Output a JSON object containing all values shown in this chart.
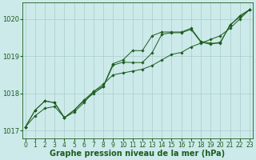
{
  "title": "Graphe pression niveau de la mer (hPa)",
  "bg_color": "#cceaea",
  "grid_color": "#aacccc",
  "line_color": "#1e5c1e",
  "hours": [
    0,
    1,
    2,
    3,
    4,
    5,
    6,
    7,
    8,
    9,
    10,
    11,
    12,
    13,
    14,
    15,
    16,
    17,
    18,
    19,
    20,
    21,
    22,
    23
  ],
  "s1": [
    1017.1,
    1017.55,
    1017.8,
    1017.75,
    1017.35,
    1017.5,
    1017.75,
    1018.05,
    1018.2,
    1018.8,
    1018.9,
    1019.15,
    1019.15,
    1019.55,
    1019.65,
    1019.65,
    1019.65,
    1019.75,
    1019.4,
    1019.35,
    1019.35,
    1019.85,
    1020.05,
    1020.25
  ],
  "s2": [
    1017.1,
    1017.55,
    1017.8,
    1017.75,
    1017.35,
    1017.55,
    1017.8,
    1018.0,
    1018.18,
    1018.76,
    1018.84,
    1018.83,
    1018.83,
    1019.09,
    1019.59,
    1019.63,
    1019.63,
    1019.72,
    1019.38,
    1019.32,
    1019.38,
    1019.82,
    1020.09,
    1020.25
  ],
  "s3": [
    1017.1,
    1017.4,
    1017.6,
    1017.65,
    1017.35,
    1017.55,
    1017.82,
    1018.05,
    1018.25,
    1018.5,
    1018.55,
    1018.6,
    1018.65,
    1018.75,
    1018.9,
    1019.05,
    1019.1,
    1019.25,
    1019.35,
    1019.45,
    1019.55,
    1019.75,
    1020.0,
    1020.25
  ],
  "ylim": [
    1016.8,
    1020.45
  ],
  "yticks": [
    1017,
    1018,
    1019,
    1020
  ],
  "xlabel_fontsize": 5.5,
  "ylabel_fontsize": 6,
  "title_fontsize": 7,
  "figw": 3.2,
  "figh": 2.0,
  "dpi": 100
}
